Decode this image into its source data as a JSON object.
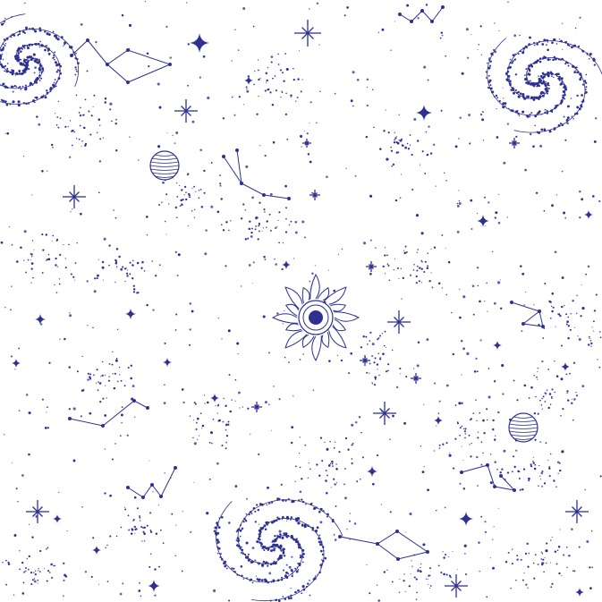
{
  "canvas": {
    "background": "#ffffff"
  },
  "palette": {
    "ink": "#2e3192",
    "ink_soft": "#5a5db0"
  },
  "motifs": {
    "sun": "sun-icon",
    "spiral_galaxy": "spiral-galaxy-icon",
    "planet": "planet-icon",
    "sparkle_star": "sparkle-star-icon",
    "constellation": "constellation-icon",
    "star_dust": "star-dust-icon"
  }
}
